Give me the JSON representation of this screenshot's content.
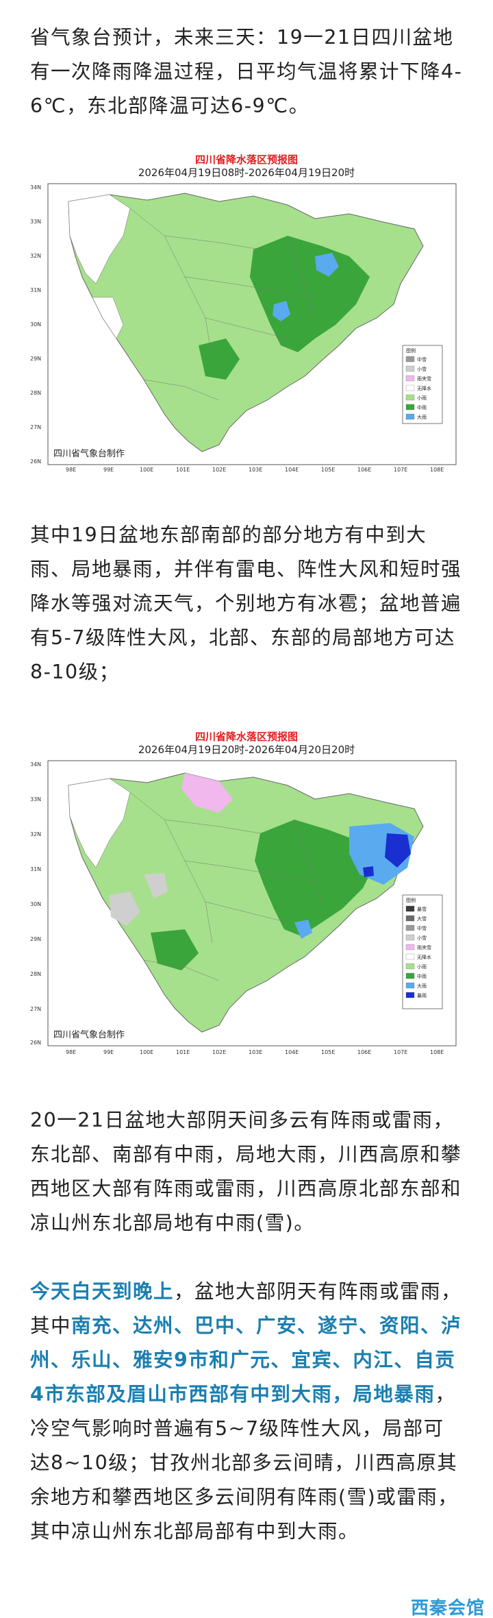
{
  "paragraphs": {
    "p1": "省气象台预计，未来三天：19一21日四川盆地有一次降雨降温过程，日平均气温将累计下降4-6℃，东北部降温可达6-9℃。",
    "p2": "其中19日盆地东部南部的部分地方有中到大雨、局地暴雨，并伴有雷电、阵性大风和短时强降水等强对流天气，个别地方有冰雹；盆地普遍有5-7级阵性大风，北部、东部的局部地方可达8-10级；",
    "p3": "20一21日盆地大部阴天间多云有阵雨或雷雨，东北部、南部有中雨，局地大雨，川西高原和攀西地区大部有阵雨或雷雨，川西高原北部东部和凉山州东北部局地有中雨(雪)。",
    "p4_lead": "今天白天到晚上",
    "p4_text1": "，盆地大部阴天有阵雨或雷雨，其中",
    "p4_cities": "南充、达州、巴中、广安、遂宁、资阳、泸州、乐山、雅安9市和广元、宜宾、内江、自贡4市东部及眉山市西部有中到大雨，局地暴雨",
    "p4_text2": "，冷空气影响时普遍有5~7级阵性大风，局部可达8~10级；甘孜州北部多云间晴，川西高原其余地方和攀西地区多云间阴有阵雨(雪)或雷雨，其中凉山州东北部局部有中到大雨。"
  },
  "maps": [
    {
      "title": "四川省降水落区预报图",
      "subtitle": "2026年04月19日08时-2026年04月19日20时",
      "credit": "四川省气象台制作",
      "lat_ticks": [
        "34N",
        "33N",
        "32N",
        "31N",
        "30N",
        "29N",
        "28N",
        "27N",
        "26N"
      ],
      "lon_ticks": [
        "98E",
        "99E",
        "100E",
        "101E",
        "102E",
        "103E",
        "104E",
        "105E",
        "106E",
        "107E",
        "108E"
      ],
      "legend_title": "图例",
      "legend": [
        {
          "label": "中雪",
          "color": "#9a9a9a"
        },
        {
          "label": "小雪",
          "color": "#cfcfcf"
        },
        {
          "label": "雨夹雪",
          "color": "#f0b8ec"
        },
        {
          "label": "无降水",
          "color": "#ffffff"
        },
        {
          "label": "小雨",
          "color": "#a6e08c"
        },
        {
          "label": "中雨",
          "color": "#3aa53a"
        },
        {
          "label": "大雨",
          "color": "#5aaaf0"
        }
      ]
    },
    {
      "title": "四川省降水落区预报图",
      "subtitle": "2026年04月19日20时-2026年04月20日20时",
      "credit": "四川省气象台制作",
      "lat_ticks": [
        "34N",
        "33N",
        "32N",
        "31N",
        "30N",
        "29N",
        "28N",
        "27N",
        "26N"
      ],
      "lon_ticks": [
        "98E",
        "99E",
        "100E",
        "101E",
        "102E",
        "103E",
        "104E",
        "105E",
        "106E",
        "107E",
        "108E"
      ],
      "legend_title": "图例",
      "legend": [
        {
          "label": "暴雪",
          "color": "#3a3a3a"
        },
        {
          "label": "大雪",
          "color": "#6a6a6a"
        },
        {
          "label": "中雪",
          "color": "#9a9a9a"
        },
        {
          "label": "小雪",
          "color": "#cfcfcf"
        },
        {
          "label": "雨夹雪",
          "color": "#f0b8ec"
        },
        {
          "label": "无降水",
          "color": "#ffffff"
        },
        {
          "label": "小雨",
          "color": "#a6e08c"
        },
        {
          "label": "中雨",
          "color": "#3aa53a"
        },
        {
          "label": "大雨",
          "color": "#5aaaf0"
        },
        {
          "label": "暴雨",
          "color": "#1a2fd0"
        }
      ]
    }
  ],
  "watermark": "西秦会馆",
  "colors": {
    "highlight": "#1a7fb0",
    "map_title": "#e02020",
    "light_rain": "#a6e08c",
    "moderate_rain": "#3aa53a",
    "heavy_rain": "#5aaaf0",
    "storm": "#1a2fd0"
  }
}
